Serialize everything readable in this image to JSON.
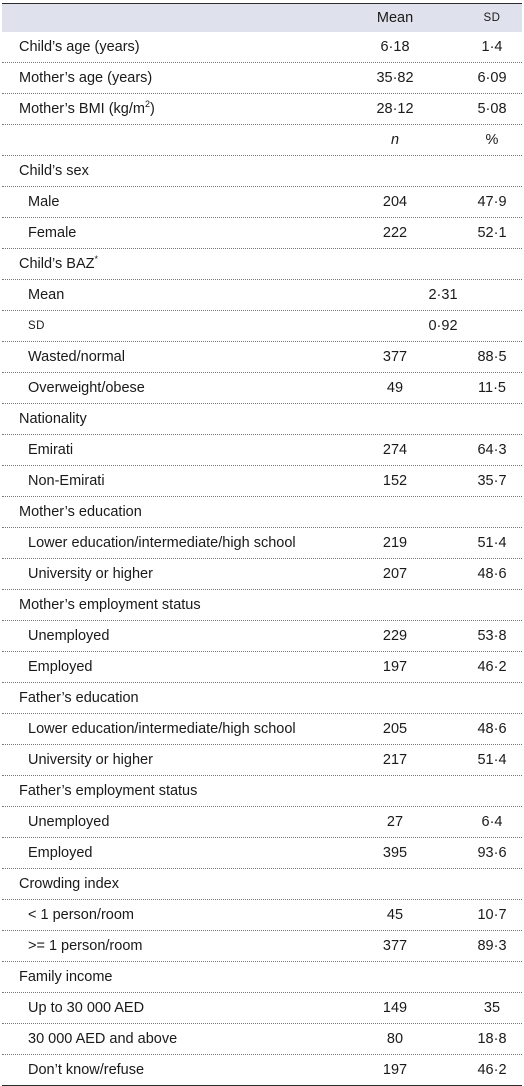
{
  "header": {
    "col1": "Mean",
    "col2": "SD"
  },
  "continuous": [
    {
      "label": "Child’s age (years)",
      "mean": "6·18",
      "sd": "1·4"
    },
    {
      "label": "Mother’s age (years)",
      "mean": "35·82",
      "sd": "6·09"
    },
    {
      "label": "Mother’s BMI (kg/m",
      "label_sup": "2",
      "label_end": ")",
      "mean": "28·12",
      "sd": "5·08"
    }
  ],
  "subheader": {
    "col1": "n",
    "col2": "%"
  },
  "child_sex": {
    "title": "Child’s sex",
    "rows": [
      {
        "label": "Male",
        "n": "204",
        "pct": "47·9"
      },
      {
        "label": "Female",
        "n": "222",
        "pct": "52·1"
      }
    ]
  },
  "baz": {
    "title": "Child’s BAZ",
    "title_sup": "*",
    "mean_label": "Mean",
    "mean_value": "2·31",
    "sd_label": "SD",
    "sd_value": "0·92",
    "rows": [
      {
        "label": "Wasted/normal",
        "n": "377",
        "pct": "88·5"
      },
      {
        "label": "Overweight/obese",
        "n": "49",
        "pct": "11·5"
      }
    ]
  },
  "nationality": {
    "title": "Nationality",
    "rows": [
      {
        "label": "Emirati",
        "n": "274",
        "pct": "64·3"
      },
      {
        "label": "Non-Emirati",
        "n": "152",
        "pct": "35·7"
      }
    ]
  },
  "mother_education": {
    "title": "Mother’s education",
    "rows": [
      {
        "label": "Lower education/intermediate/high school",
        "n": "219",
        "pct": "51·4"
      },
      {
        "label": "University or higher",
        "n": "207",
        "pct": "48·6"
      }
    ]
  },
  "mother_employment": {
    "title": "Mother’s employment status",
    "rows": [
      {
        "label": "Unemployed",
        "n": "229",
        "pct": "53·8"
      },
      {
        "label": "Employed",
        "n": "197",
        "pct": "46·2"
      }
    ]
  },
  "father_education": {
    "title": "Father’s education",
    "rows": [
      {
        "label": "Lower education/intermediate/high school",
        "n": "205",
        "pct": "48·6"
      },
      {
        "label": "University or higher",
        "n": "217",
        "pct": "51·4"
      }
    ]
  },
  "father_employment": {
    "title": "Father’s employment status",
    "rows": [
      {
        "label": "Unemployed",
        "n": "27",
        "pct": "6·4"
      },
      {
        "label": "Employed",
        "n": "395",
        "pct": "93·6"
      }
    ]
  },
  "crowding": {
    "title": "Crowding index",
    "rows": [
      {
        "label": "< 1 person/room",
        "n": "45",
        "pct": "10·7"
      },
      {
        "label": ">= 1 person/room",
        "n": "377",
        "pct": "89·3"
      }
    ]
  },
  "income": {
    "title": "Family income",
    "rows": [
      {
        "label": "Up to 30 000 AED",
        "n": "149",
        "pct": "35"
      },
      {
        "label": "30 000 AED and above",
        "n": "80",
        "pct": "18·8"
      },
      {
        "label": "Don’t know/refuse",
        "n": "197",
        "pct": "46·2"
      }
    ]
  },
  "colors": {
    "header_bg": "#dfe2ec",
    "rule": "#2b2b2b",
    "text": "#1a1a1a"
  }
}
